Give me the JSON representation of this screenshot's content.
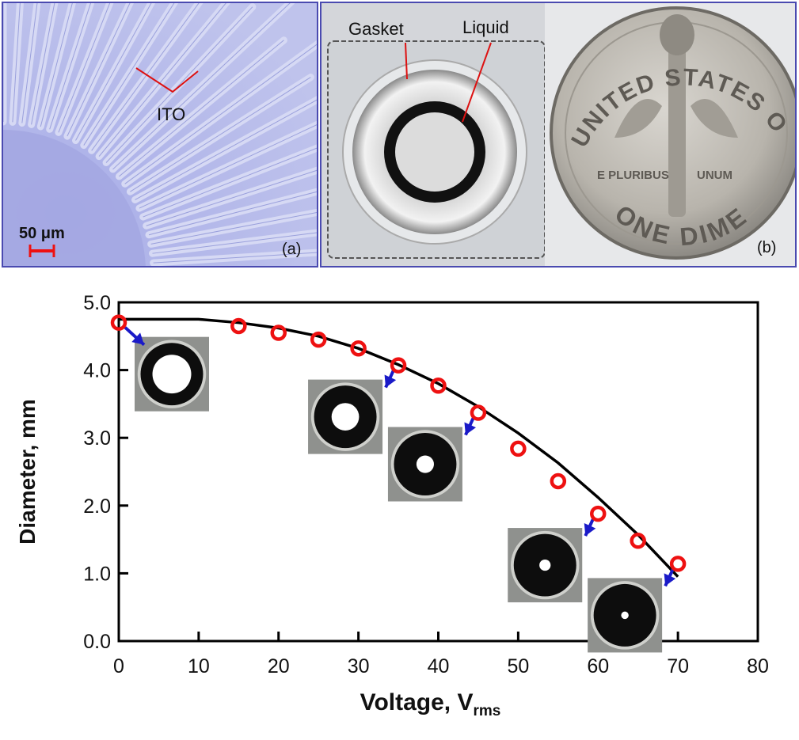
{
  "panel_a": {
    "annotation": "ITO",
    "scale_bar": "50 μm",
    "label": "(a)"
  },
  "panel_b": {
    "gasket_label": "Gasket",
    "liquid_label": "Liquid",
    "label": "(b)",
    "coin_top_text": "UNITED STATES OF AMERICA",
    "coin_bottom_text": "ONE DIME",
    "coin_motto_left": "E PLURIBUS",
    "coin_motto_right": "UNUM"
  },
  "colors": {
    "frame": "#4a4ab0",
    "marker": "#ee1111",
    "fit_line": "#000000",
    "arrow": "#1a1ac8",
    "annotation_line": "#dd1111"
  },
  "chart_data": {
    "type": "scatter",
    "title": "",
    "xlabel": "Voltage, V",
    "xlabel_sub": "rms",
    "ylabel": "Diameter, mm",
    "xlim": [
      0,
      80
    ],
    "ylim": [
      0,
      5
    ],
    "xticks": [
      0,
      10,
      20,
      30,
      40,
      50,
      60,
      70,
      80
    ],
    "xtick_labels": [
      "0",
      "10",
      "20",
      "30",
      "40",
      "50",
      "60",
      "70",
      "80"
    ],
    "yticks": [
      0,
      1,
      2,
      3,
      4,
      5
    ],
    "ytick_labels": [
      "0.0",
      "1.0",
      "2.0",
      "3.0",
      "4.0",
      "5.0"
    ],
    "grid": false,
    "series": [
      {
        "kind": "markers",
        "marker": "open-circle",
        "x": [
          0,
          15,
          20,
          25,
          30,
          35,
          40,
          45,
          50,
          55,
          60,
          65,
          70
        ],
        "y": [
          4.7,
          4.65,
          4.55,
          4.45,
          4.32,
          4.07,
          3.77,
          3.37,
          2.84,
          2.36,
          1.88,
          1.48,
          1.14
        ]
      },
      {
        "kind": "fit-line",
        "x": [
          0,
          5,
          10,
          15,
          20,
          25,
          30,
          35,
          40,
          45,
          50,
          55,
          60,
          65,
          70
        ],
        "y": [
          4.75,
          4.75,
          4.75,
          4.7,
          4.62,
          4.5,
          4.32,
          4.08,
          3.8,
          3.46,
          3.07,
          2.63,
          2.12,
          1.57,
          0.95
        ]
      }
    ],
    "insets": [
      {
        "name": "aperture-inset-0v",
        "target": [
          0,
          4.7
        ],
        "pupil": 0.62
      },
      {
        "name": "aperture-inset-35v",
        "target": [
          35,
          4.07
        ],
        "pupil": 0.44
      },
      {
        "name": "aperture-inset-45v",
        "target": [
          45,
          3.37
        ],
        "pupil": 0.28
      },
      {
        "name": "aperture-inset-60v",
        "target": [
          60,
          1.88
        ],
        "pupil": 0.18
      },
      {
        "name": "aperture-inset-70v",
        "target": [
          70,
          1.14
        ],
        "pupil": 0.12
      }
    ]
  }
}
